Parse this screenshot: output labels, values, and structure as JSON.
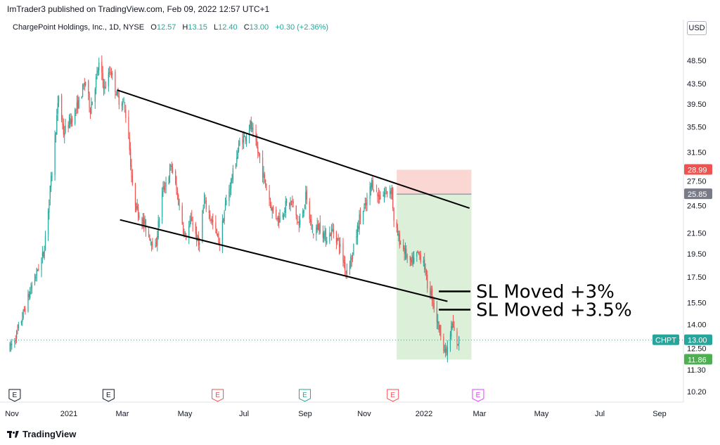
{
  "header": {
    "text": "ImTrader3 published on TradingView.com, Feb 09, 2022 12:57 UTC+1"
  },
  "legend": {
    "symbol": "ChargePoint Holdings, Inc., 1D, NYSE",
    "o_label": "O",
    "o": "12.57",
    "h_label": "H",
    "h": "13.15",
    "l_label": "L",
    "l": "12.40",
    "c_label": "C",
    "c": "13.00",
    "change": "+0.30 (+2.36%)"
  },
  "currency_button": "USD",
  "footer": {
    "brand": "TradingView"
  },
  "colors": {
    "up": "#26a69a",
    "down": "#ef5350",
    "stop_zone": "#f8c9c4",
    "target_zone": "#cfe9cc"
  },
  "chart_data": {
    "type": "candlestick",
    "symbol": "CHPT",
    "y_axis": {
      "scale": "log",
      "ticks": [
        "48.50",
        "43.50",
        "39.50",
        "35.50",
        "31.50",
        "27.50",
        "24.50",
        "21.50",
        "19.50",
        "17.50",
        "15.50",
        "14.00",
        "12.50",
        "11.30",
        "10.20"
      ]
    },
    "x_axis": {
      "ticks": [
        "Nov",
        "2021",
        "Mar",
        "May",
        "Jul",
        "Sep",
        "Nov",
        "2022",
        "Mar",
        "May",
        "Jul",
        "Sep"
      ]
    },
    "price_tags": [
      {
        "label": "",
        "value": "28.99",
        "color": "#ef5350"
      },
      {
        "label": "",
        "value": "25.85",
        "color": "#787b86"
      },
      {
        "label": "CHPT",
        "value": "13.00",
        "color": "#26a69a"
      },
      {
        "label": "",
        "value": "11.86",
        "color": "#4caf50"
      }
    ],
    "position": {
      "stop": 28.99,
      "entry": 25.85,
      "target": 11.86,
      "start": "2021-12-06",
      "end": "2022-02-22"
    },
    "channel": {
      "upper": [
        {
          "x": "2021-02-17",
          "y": 42.2
        },
        {
          "x": "2022-02-20",
          "y": 24.2
        }
      ],
      "lower": [
        {
          "x": "2021-02-20",
          "y": 22.9
        },
        {
          "x": "2022-01-28",
          "y": 15.6
        }
      ]
    },
    "annotations": [
      {
        "text": "SL Moved +3%",
        "line_x": [
          "2022-01-19",
          "2022-02-21"
        ],
        "y": 16.35
      },
      {
        "text": "SL Moved +3.5%",
        "line_x": [
          "2022-01-19",
          "2022-02-21"
        ],
        "y": 15.0
      }
    ],
    "events": [
      {
        "label": "E",
        "x": "2020-11-02",
        "style": "dark"
      },
      {
        "label": "E",
        "x": "2021-02-08",
        "style": "dark"
      },
      {
        "label": "E",
        "x": "2021-06-02",
        "style": "red"
      },
      {
        "label": "E",
        "x": "2021-09-01",
        "style": "green"
      },
      {
        "label": "E",
        "x": "2021-12-02",
        "style": "red"
      },
      {
        "label": "E",
        "x": "2022-03-01",
        "style": "magenta"
      }
    ],
    "price_path": [
      [
        "2020-10-28",
        12.5
      ],
      [
        "2020-11-05",
        13.5
      ],
      [
        "2020-11-20",
        16.8
      ],
      [
        "2020-12-02",
        19.5
      ],
      [
        "2020-12-10",
        27.5
      ],
      [
        "2020-12-18",
        41.0
      ],
      [
        "2020-12-23",
        34.5
      ],
      [
        "2021-01-04",
        38.0
      ],
      [
        "2021-01-15",
        44.0
      ],
      [
        "2021-01-20",
        38.5
      ],
      [
        "2021-01-29",
        47.5
      ],
      [
        "2021-02-04",
        42.5
      ],
      [
        "2021-02-10",
        46.5
      ],
      [
        "2021-02-18",
        40.5
      ],
      [
        "2021-02-24",
        39.5
      ],
      [
        "2021-02-26",
        37.5
      ],
      [
        "2021-03-01",
        34.0
      ],
      [
        "2021-03-05",
        26.5
      ],
      [
        "2021-03-10",
        24.0
      ],
      [
        "2021-03-17",
        22.5
      ],
      [
        "2021-03-24",
        21.0
      ],
      [
        "2021-03-29",
        20.0
      ],
      [
        "2021-04-05",
        26.0
      ],
      [
        "2021-04-15",
        29.5
      ],
      [
        "2021-04-22",
        25.0
      ],
      [
        "2021-04-29",
        21.0
      ],
      [
        "2021-05-06",
        23.0
      ],
      [
        "2021-05-13",
        20.3
      ],
      [
        "2021-05-19",
        25.0
      ],
      [
        "2021-05-28",
        22.5
      ],
      [
        "2021-06-04",
        20.5
      ],
      [
        "2021-06-10",
        24.5
      ],
      [
        "2021-06-18",
        28.5
      ],
      [
        "2021-06-25",
        33.0
      ],
      [
        "2021-07-01",
        34.0
      ],
      [
        "2021-07-06",
        35.8
      ],
      [
        "2021-07-15",
        31.0
      ],
      [
        "2021-07-22",
        27.0
      ],
      [
        "2021-07-29",
        24.0
      ],
      [
        "2021-08-05",
        23.0
      ],
      [
        "2021-08-12",
        24.5
      ],
      [
        "2021-08-19",
        24.8
      ],
      [
        "2021-08-26",
        22.2
      ],
      [
        "2021-09-02",
        25.5
      ],
      [
        "2021-09-09",
        21.5
      ],
      [
        "2021-09-16",
        22.3
      ],
      [
        "2021-09-23",
        21.0
      ],
      [
        "2021-09-30",
        21.8
      ],
      [
        "2021-10-07",
        20.5
      ],
      [
        "2021-10-14",
        18.0
      ],
      [
        "2021-10-21",
        19.5
      ],
      [
        "2021-10-28",
        23.0
      ],
      [
        "2021-11-04",
        24.5
      ],
      [
        "2021-11-10",
        27.3
      ],
      [
        "2021-11-17",
        25.5
      ],
      [
        "2021-11-24",
        26.0
      ],
      [
        "2021-12-01",
        26.5
      ],
      [
        "2021-12-03",
        22.5
      ],
      [
        "2021-12-08",
        21.0
      ],
      [
        "2021-12-14",
        19.8
      ],
      [
        "2021-12-20",
        18.5
      ],
      [
        "2021-12-28",
        19.5
      ],
      [
        "2022-01-03",
        19.0
      ],
      [
        "2022-01-07",
        16.8
      ],
      [
        "2022-01-12",
        16.0
      ],
      [
        "2022-01-18",
        14.0
      ],
      [
        "2022-01-21",
        13.5
      ],
      [
        "2022-01-26",
        12.2
      ],
      [
        "2022-01-28",
        12.4
      ],
      [
        "2022-02-02",
        14.0
      ],
      [
        "2022-02-07",
        12.7
      ],
      [
        "2022-02-09",
        13.0
      ]
    ]
  }
}
